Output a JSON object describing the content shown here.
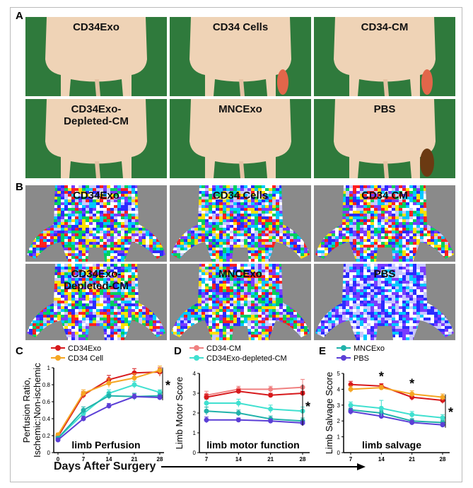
{
  "panels": {
    "a_letter": "A",
    "b_letter": "B",
    "c_letter": "C",
    "d_letter": "D",
    "e_letter": "E"
  },
  "photos": [
    {
      "label": "CD34Exo",
      "wound": "none"
    },
    {
      "label": "CD34 Cells",
      "wound": "red"
    },
    {
      "label": "CD34-CM",
      "wound": "red"
    },
    {
      "label": "CD34Exo-\nDepleted-CM",
      "wound": "none"
    },
    {
      "label": "MNCExo",
      "wound": "none"
    },
    {
      "label": "PBS",
      "wound": "necrotic"
    }
  ],
  "ldpi": [
    {
      "label": "CD34Exo"
    },
    {
      "label": "CD34 Cells"
    },
    {
      "label": "CD34 CM"
    },
    {
      "label": "CD34Exo-\nDepleted-CM"
    },
    {
      "label": "MNCExo"
    },
    {
      "label": "PBS"
    }
  ],
  "colors": {
    "CD34Exo": "#d7191c",
    "CD34 Cell": "#f5a623",
    "CD34-CM": "#f08080",
    "CD34Exo-depleted-CM": "#40e0d0",
    "MNCExo": "#20b2aa",
    "PBS": "#5b3fd6",
    "background_green": "#2f7a3c",
    "ldpi_gray": "#8a8a8a"
  },
  "x_axis_title": "Days After Surgery",
  "chart_data": [
    {
      "type": "line",
      "panel": "C",
      "title": "limb Perfusion",
      "ylabel": "Perfusion Ratio,\nIschemic:Non-ischemic",
      "x": [
        0,
        7,
        14,
        21,
        28
      ],
      "ylim": [
        0,
        1.0
      ],
      "yticks": [
        "0",
        "0.2",
        "0.4",
        "0.6",
        "0.8",
        "1"
      ],
      "significance": "*",
      "series": [
        {
          "name": "CD34Exo",
          "values": [
            0.19,
            0.68,
            0.86,
            0.94,
            0.95
          ],
          "err": [
            0.02,
            0.04,
            0.05,
            0.05,
            0.05
          ]
        },
        {
          "name": "CD34 Cell",
          "values": [
            0.21,
            0.7,
            0.82,
            0.88,
            0.97
          ],
          "err": [
            0.02,
            0.04,
            0.05,
            0.05,
            0.05
          ]
        },
        {
          "name": "",
          "values": [
            0.17,
            0.46,
            0.7,
            0.8,
            0.71
          ],
          "err": [
            0.02,
            0.04,
            0.04,
            0.04,
            0.03
          ],
          "color": "#40e0d0"
        },
        {
          "name": "",
          "values": [
            0.17,
            0.5,
            0.67,
            0.66,
            0.67
          ],
          "err": [
            0.02,
            0.04,
            0.04,
            0.04,
            0.03
          ],
          "color": "#20b2aa"
        },
        {
          "name": "",
          "values": [
            0.15,
            0.4,
            0.55,
            0.66,
            0.65
          ],
          "err": [
            0.02,
            0.03,
            0.03,
            0.03,
            0.03
          ],
          "color": "#5b3fd6"
        }
      ]
    },
    {
      "type": "line",
      "panel": "D",
      "title": "limb motor function",
      "ylabel": "Limb Motor Score",
      "x": [
        7,
        14,
        21,
        28
      ],
      "ylim": [
        0,
        4
      ],
      "yticks": [
        "0",
        "1",
        "2",
        "3",
        "4"
      ],
      "significance": "*",
      "series": [
        {
          "name": "CD34-CM",
          "values": [
            2.9,
            3.2,
            3.2,
            3.3
          ],
          "err": [
            0.2,
            0.15,
            0.15,
            0.4
          ]
        },
        {
          "name": "CD34Exo-depleted-CM",
          "values": [
            2.5,
            2.5,
            2.2,
            2.1
          ],
          "err": [
            0.2,
            0.2,
            0.2,
            0.2
          ]
        },
        {
          "name": "",
          "values": [
            2.8,
            3.1,
            2.9,
            3.0
          ],
          "err": [
            0.15,
            0.1,
            0.1,
            0.1
          ],
          "color": "#d7191c"
        },
        {
          "name": "",
          "values": [
            2.1,
            2.0,
            1.7,
            1.6
          ],
          "err": [
            0.2,
            0.15,
            0.15,
            0.15
          ],
          "color": "#20b2aa"
        },
        {
          "name": "",
          "values": [
            1.65,
            1.65,
            1.6,
            1.5
          ],
          "err": [
            0.15,
            0.1,
            0.1,
            0.1
          ],
          "color": "#5b3fd6"
        }
      ]
    },
    {
      "type": "line",
      "panel": "E",
      "title": "limb salvage",
      "ylabel": "Limb Salvage Score",
      "x": [
        7,
        14,
        21,
        28
      ],
      "ylim": [
        0,
        5
      ],
      "yticks": [
        "0",
        "1",
        "2",
        "3",
        "4",
        "5"
      ],
      "significance": "*",
      "annotations": [
        {
          "x": 14,
          "text": "*"
        },
        {
          "x": 21,
          "text": "*"
        }
      ],
      "series": [
        {
          "name": "MNCExo",
          "values": [
            2.7,
            2.5,
            2.0,
            1.9
          ],
          "err": [
            0.2,
            0.15,
            0.15,
            0.15
          ]
        },
        {
          "name": "PBS",
          "values": [
            2.6,
            2.3,
            1.9,
            1.75
          ],
          "err": [
            0.2,
            0.15,
            0.15,
            0.15
          ]
        },
        {
          "name": "",
          "values": [
            4.3,
            4.2,
            3.5,
            3.3
          ],
          "err": [
            0.2,
            0.15,
            0.2,
            0.2
          ],
          "color": "#d7191c"
        },
        {
          "name": "",
          "values": [
            4.0,
            4.1,
            3.7,
            3.5
          ],
          "err": [
            0.2,
            0.15,
            0.2,
            0.2
          ],
          "color": "#f5a623"
        },
        {
          "name": "",
          "values": [
            3.0,
            2.8,
            2.4,
            2.2
          ],
          "err": [
            0.2,
            0.5,
            0.2,
            0.2
          ],
          "color": "#40e0d0"
        }
      ]
    }
  ]
}
